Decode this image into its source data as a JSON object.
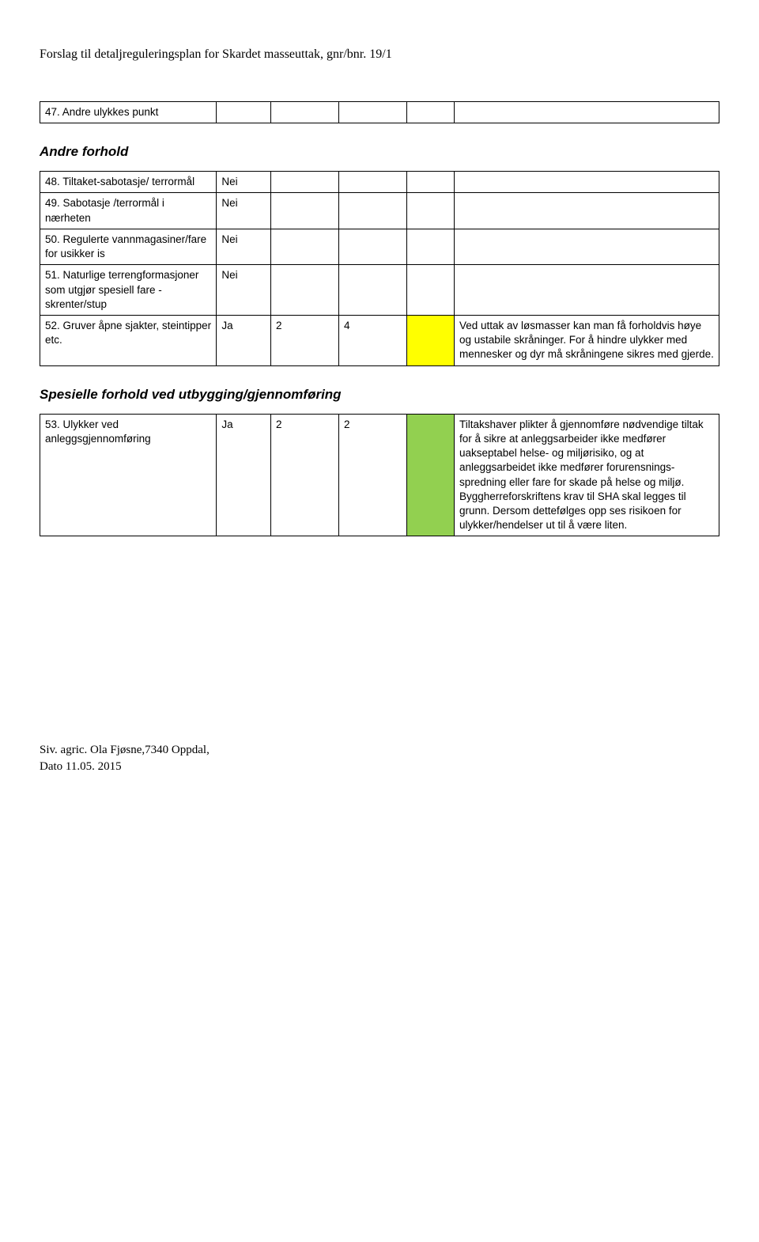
{
  "header": "Forslag til detaljreguleringsplan for Skardet masseuttak, gnr/bnr. 19/1",
  "row47": {
    "desc": "47. Andre ulykkes punkt"
  },
  "sectionA": "Andre forhold",
  "row48": {
    "desc": "48. Tiltaket-sabotasje/ terrormål",
    "ans": "Nei"
  },
  "row49": {
    "desc": "49. Sabotasje /terrormål i nærheten",
    "ans": "Nei"
  },
  "row50": {
    "desc": "50. Regulerte vannmagasiner/fare for usikker is",
    "ans": "Nei"
  },
  "row51": {
    "desc": "51. Naturlige terrengformasjoner som utgjør spesiell fare - skrenter/stup",
    "ans": "Nei"
  },
  "row52": {
    "desc": "52. Gruver åpne sjakter, steintipper etc.",
    "ans": "Ja",
    "n1": "2",
    "n2": "4",
    "note": "Ved uttak av løsmasser kan man få forholdvis høye og ustabile skråninger. For å hindre ulykker med mennesker og dyr må skråningene sikres med gjerde."
  },
  "sectionB": "Spesielle forhold ved utbygging/gjennomføring",
  "row53": {
    "desc": "53. Ulykker ved anleggsgjennomføring",
    "ans": "Ja",
    "n1": "2",
    "n2": "2",
    "note": "Tiltakshaver plikter å gjennomføre nødvendige tiltak for å sikre at anleggsarbeider ikke medfører uakseptabel helse- og miljørisiko, og at anleggsarbeidet ikke medfører forurensnings-spredning eller fare for skade på helse og miljø. Byggherreforskriftens krav til SHA skal legges til grunn. Dersom dettefølges opp ses risikoen for ulykker/hendelser ut til å være liten."
  },
  "footer1": "Siv. agric. Ola Fjøsne,7340 Oppdal,",
  "footer2": "Dato 11.05. 2015",
  "colors": {
    "yellow": "#ffff00",
    "green": "#92d050",
    "border": "#000000",
    "bg": "#ffffff"
  }
}
